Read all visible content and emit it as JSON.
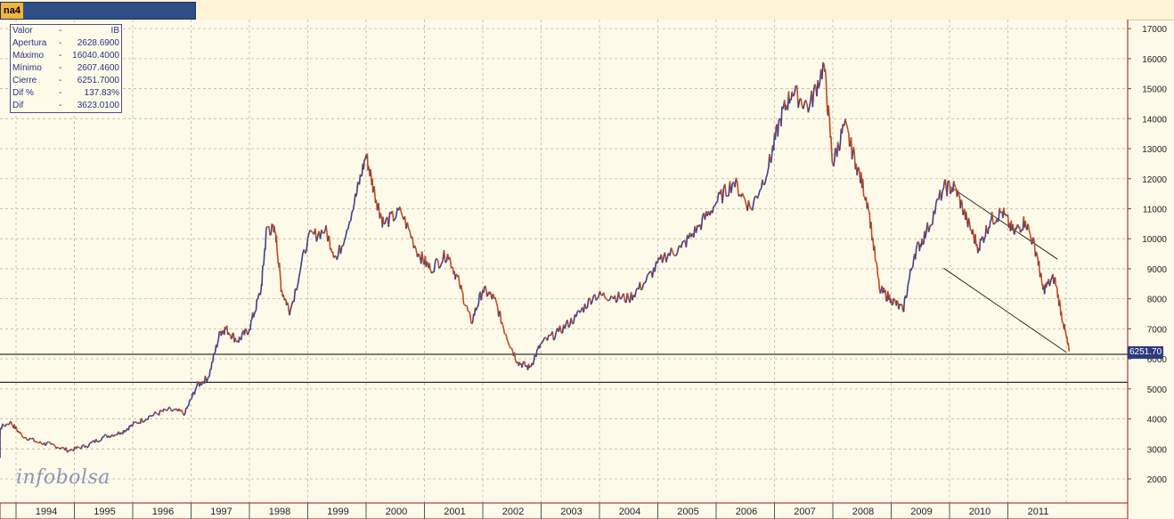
{
  "window": {
    "tab_label": "na4"
  },
  "info_panel": {
    "rows": [
      {
        "label": "Valor",
        "sep": "-",
        "value": "IB"
      },
      {
        "label": "Apertura",
        "sep": "-",
        "value": "2628.6900"
      },
      {
        "label": "Máximo",
        "sep": "-",
        "value": "16040.4000"
      },
      {
        "label": "Mínimo",
        "sep": "-",
        "value": "2607.4600"
      },
      {
        "label": "Cierre",
        "sep": "-",
        "value": "6251.7000"
      },
      {
        "label": "Dif %",
        "sep": "-",
        "value": "137.83%"
      },
      {
        "label": "Dif",
        "sep": "-",
        "value": "3623.0100"
      }
    ]
  },
  "watermark": "infobolsa",
  "last_price_label": "6251.70",
  "colors": {
    "background": "#fdfae9",
    "grid": "#bdb6a0",
    "up_series": "#3c3f8f",
    "down_series": "#c24a1c",
    "axis": "#8b1a1a"
  },
  "chart_data": {
    "type": "line",
    "title": "",
    "xlabel": "",
    "ylabel": "",
    "x_ticks": [
      "1994",
      "1995",
      "1996",
      "1997",
      "1998",
      "1999",
      "2000",
      "2001",
      "2002",
      "2003",
      "2004",
      "2005",
      "2006",
      "2007",
      "2008",
      "2009",
      "2010",
      "2011"
    ],
    "y_ticks": [
      2000,
      3000,
      4000,
      5000,
      6000,
      7000,
      8000,
      9000,
      10000,
      11000,
      12000,
      13000,
      14000,
      15000,
      16000,
      17000
    ],
    "ylim": [
      1200,
      17300
    ],
    "xlim": [
      1993.0,
      2012.2
    ],
    "grid": true,
    "series": [
      {
        "x": [
          1993.0,
          1993.3,
          1993.6,
          1993.9,
          1994.1,
          1994.4,
          1994.6,
          1994.9,
          1995.2,
          1995.5,
          1995.8,
          1996.0,
          1996.3,
          1996.6,
          1996.9,
          1997.1,
          1997.3,
          1997.5,
          1997.6,
          1997.8,
          1998.0,
          1998.2,
          1998.3,
          1998.45,
          1998.55,
          1998.7,
          1999.0,
          1999.3,
          1999.5,
          1999.8,
          2000.0,
          2000.15,
          2000.3,
          2000.6,
          2000.9,
          2001.1,
          2001.4,
          2001.6,
          2001.8,
          2002.0,
          2002.2,
          2002.4,
          2002.6,
          2002.8,
          2003.0,
          2003.3,
          2003.6,
          2003.9,
          2004.2,
          2004.5,
          2004.8,
          2005.1,
          2005.4,
          2005.7,
          2006.0,
          2006.3,
          2006.6,
          2006.9,
          2007.1,
          2007.3,
          2007.6,
          2007.85,
          2008.0,
          2008.2,
          2008.4,
          2008.6,
          2008.8,
          2009.0,
          2009.2,
          2009.4,
          2009.6,
          2009.9,
          2010.1,
          2010.3,
          2010.5,
          2010.7,
          2010.9,
          2011.1,
          2011.3,
          2011.5,
          2011.6,
          2011.8,
          2011.95,
          2012.05
        ],
        "values": [
          2700,
          3050,
          3550,
          3900,
          3450,
          3200,
          3150,
          2950,
          3100,
          3400,
          3550,
          3800,
          4100,
          4300,
          4200,
          5100,
          5400,
          6900,
          7000,
          6600,
          7000,
          8300,
          10400,
          10200,
          8300,
          7600,
          10000,
          10300,
          9300,
          11200,
          12800,
          11500,
          10500,
          10900,
          9500,
          9000,
          9500,
          8500,
          7200,
          8300,
          8000,
          6800,
          5900,
          5700,
          6500,
          6900,
          7400,
          8100,
          8100,
          8000,
          8600,
          9400,
          9700,
          10400,
          11200,
          11900,
          11000,
          12400,
          14000,
          14900,
          14400,
          15800,
          12500,
          13800,
          12500,
          11200,
          8300,
          8000,
          7600,
          9500,
          10200,
          11700,
          11700,
          10600,
          9700,
          10600,
          10900,
          10200,
          10600,
          9500,
          8300,
          8700,
          7200,
          6250
        ]
      }
    ],
    "support_lines": [
      6150,
      5220
    ],
    "trend_lines": [
      {
        "from": [
          2010.0,
          11750
        ],
        "to": [
          2011.85,
          9320
        ]
      },
      {
        "from": [
          2009.9,
          9020
        ],
        "to": [
          2012.0,
          6220
        ]
      }
    ]
  }
}
